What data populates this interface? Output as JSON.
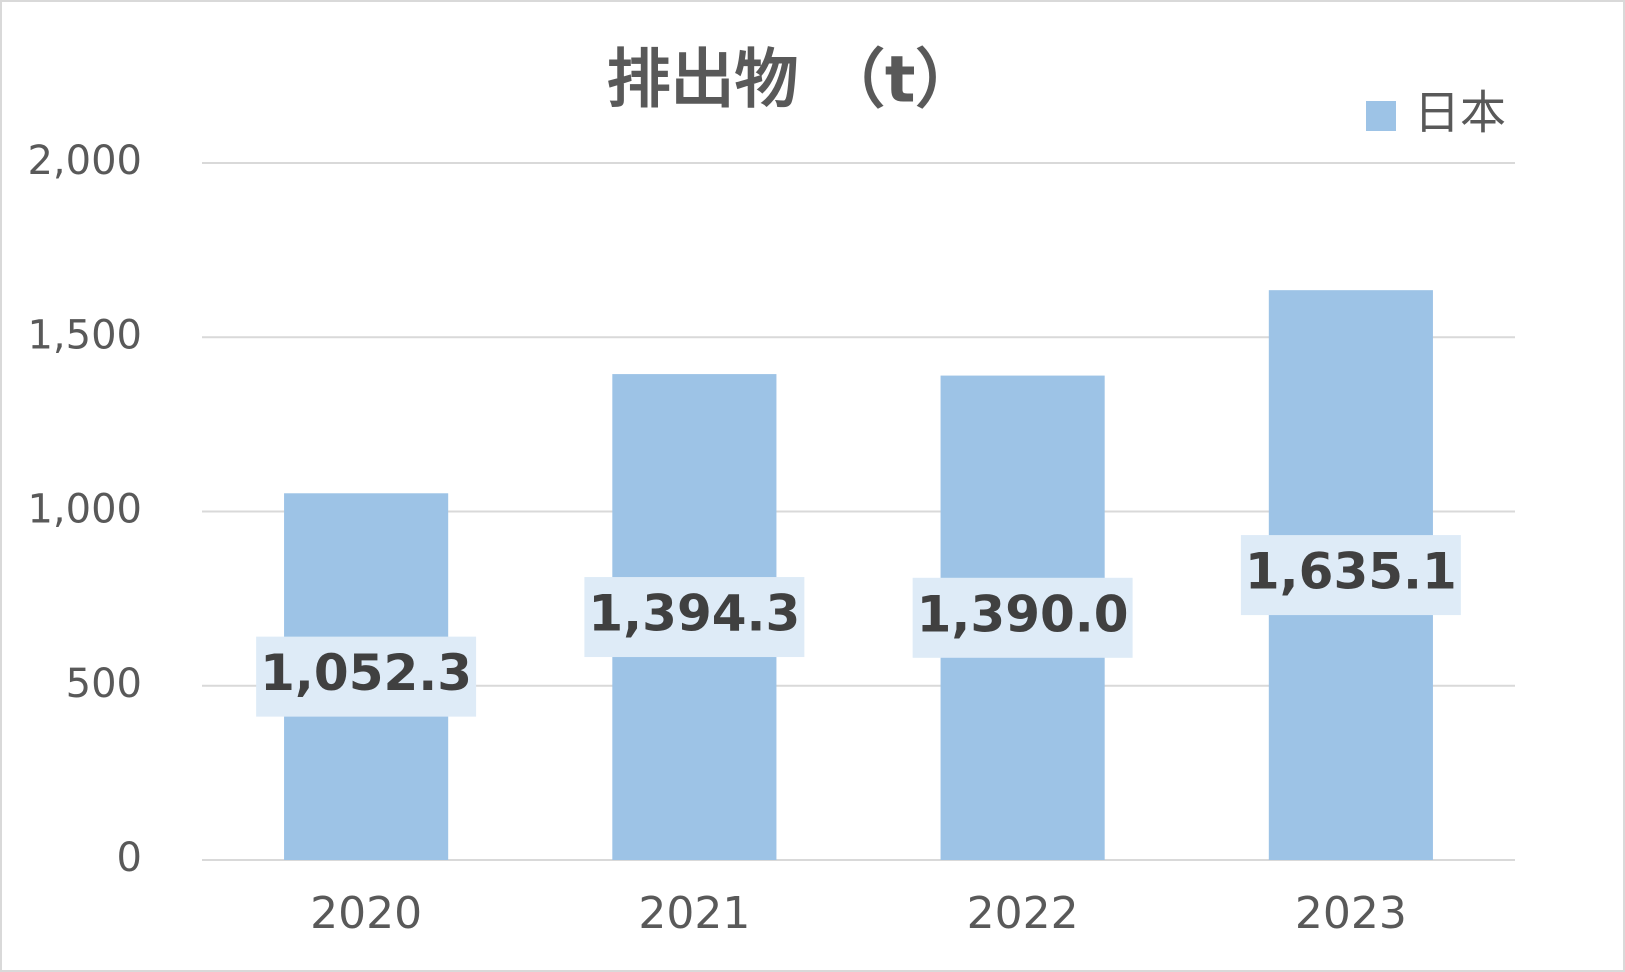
{
  "chart_data": {
    "type": "bar",
    "title": "排出物 （t）",
    "categories": [
      "2020",
      "2021",
      "2022",
      "2023"
    ],
    "series": [
      {
        "name": "日本",
        "color": "#9dc3e6",
        "values": [
          1052.3,
          1394.3,
          1390.0,
          1635.1
        ],
        "value_labels": [
          "1,052.3",
          "1,394.3",
          "1,390.0",
          "1,635.1"
        ]
      }
    ],
    "ylim": [
      0,
      2000
    ],
    "yticks": [
      0,
      500,
      {
        "value": 1000,
        "label": "1,000"
      },
      {
        "value": 1500,
        "label": "1,500"
      },
      {
        "value": 2000,
        "label": "2,000"
      }
    ],
    "grid": true,
    "legend": "top-right"
  }
}
